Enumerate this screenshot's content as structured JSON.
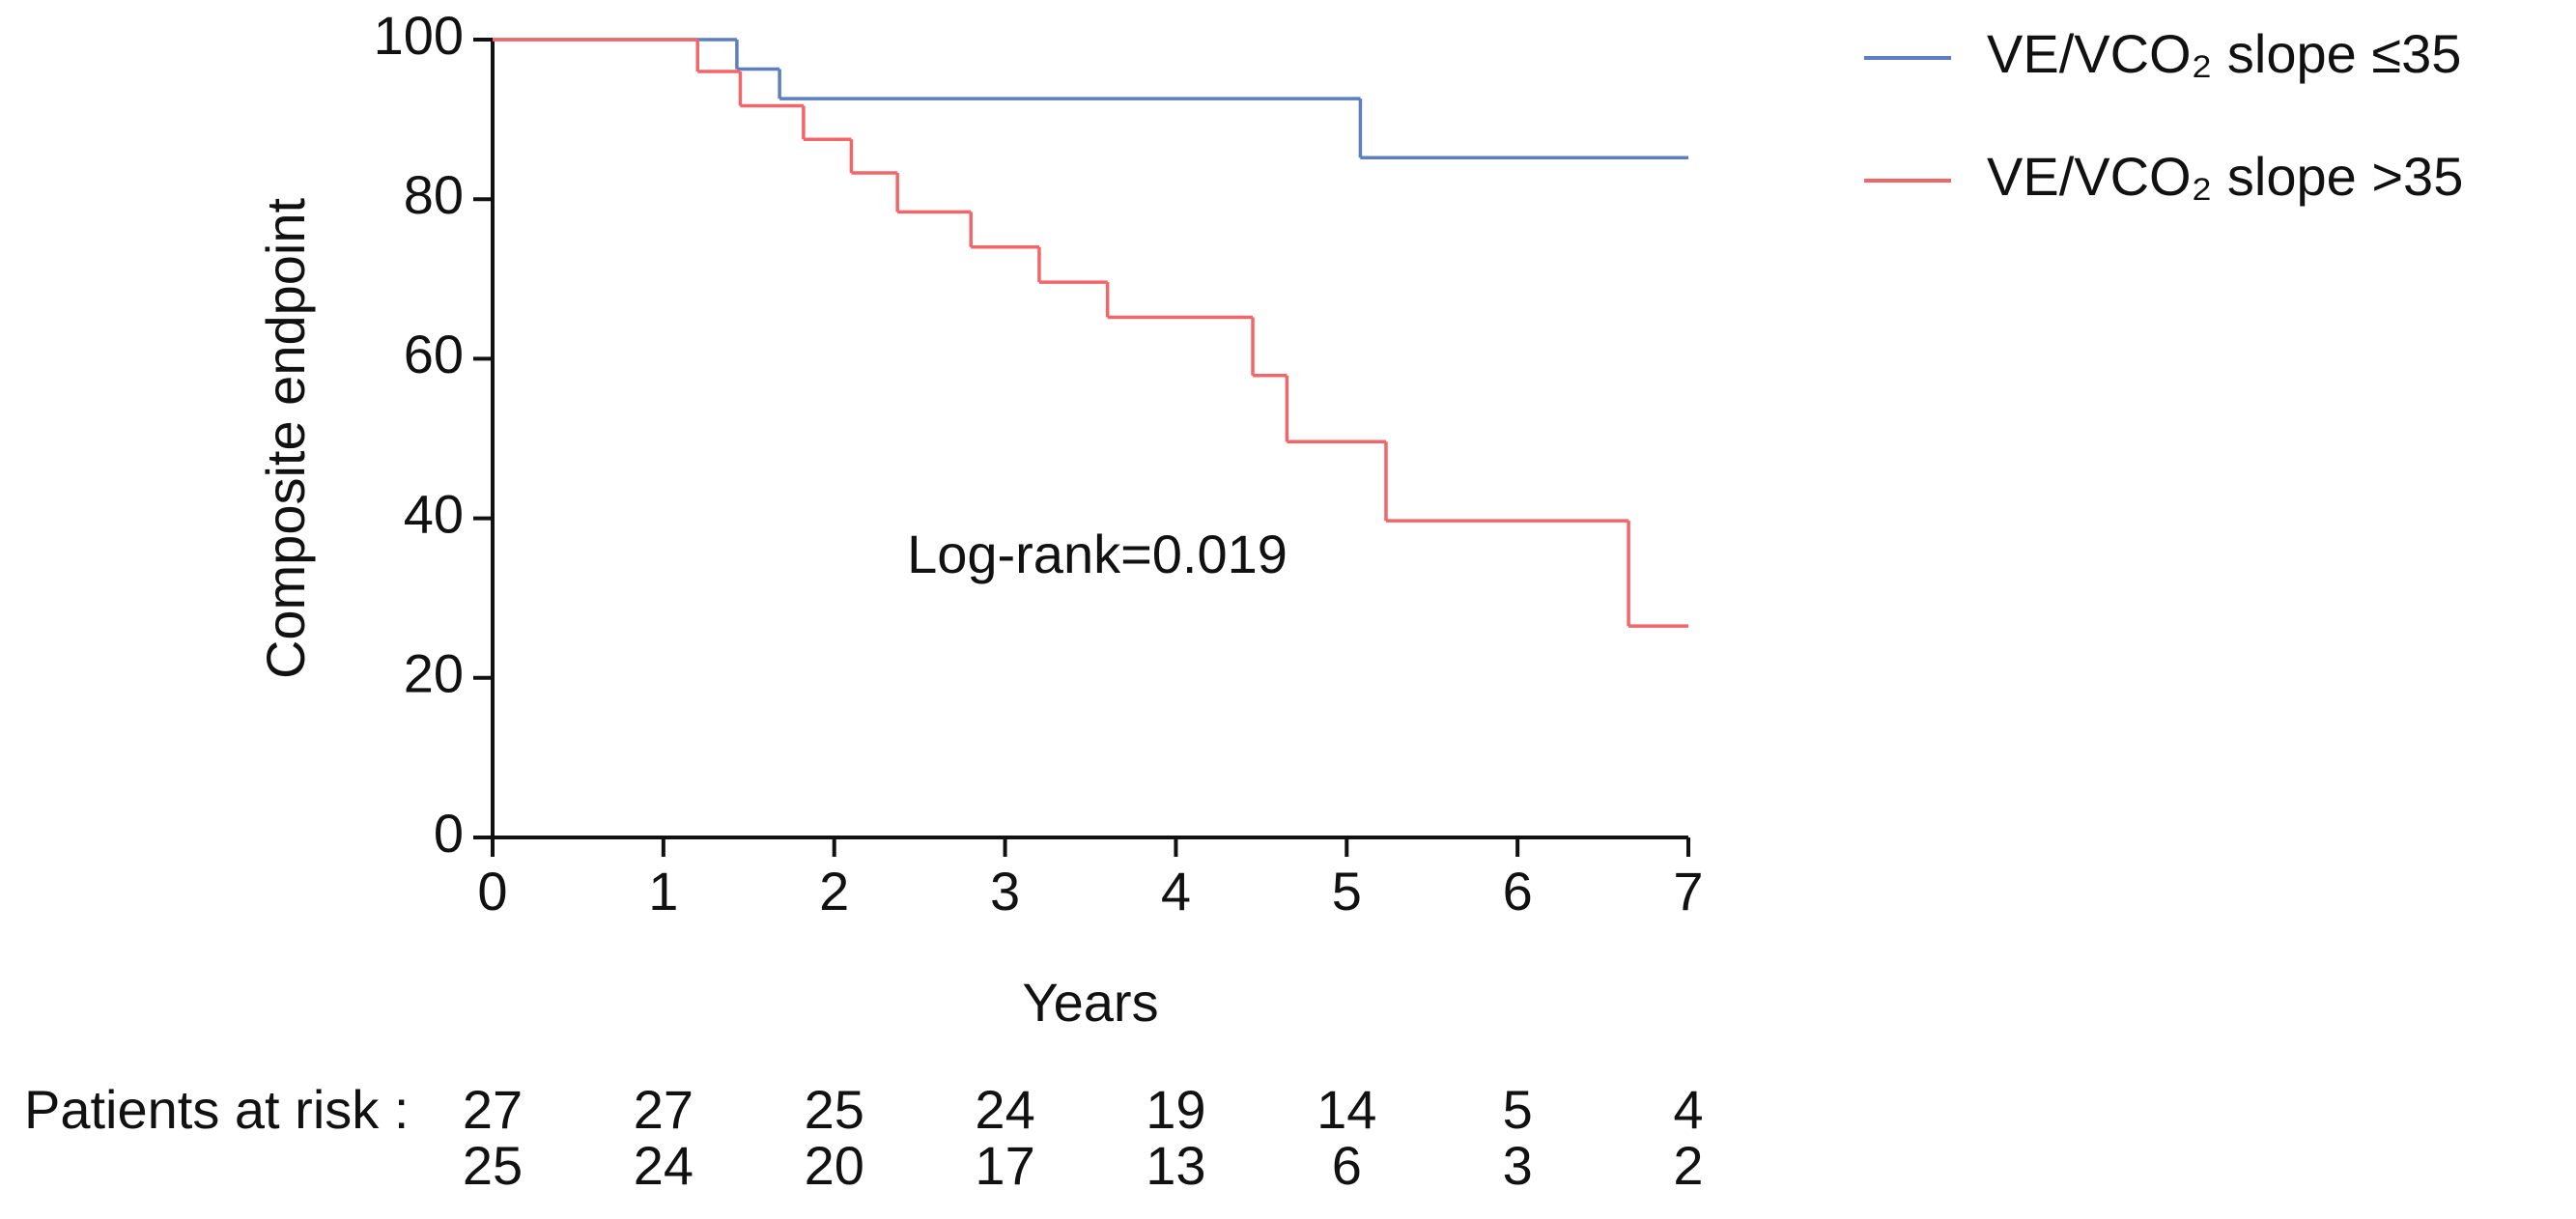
{
  "chart_data": {
    "type": "step",
    "y_label": "Composite endpoint",
    "x_label": "Years",
    "annotation": "Log-rank=0.019",
    "xlim": [
      0,
      7
    ],
    "xticks": [
      0,
      1,
      2,
      3,
      4,
      5,
      6,
      7
    ],
    "ylim": [
      0,
      100
    ],
    "yticks": [
      0,
      20,
      40,
      60,
      80,
      100
    ],
    "grid": false,
    "legend": "right",
    "series": [
      {
        "name": "VE/VCO₂ slope ≤35",
        "color": "#5b7fc0",
        "x": [
          0,
          1.43,
          1.68,
          5.08,
          7
        ],
        "values": [
          100,
          96.3,
          92.6,
          85.2,
          85.2
        ]
      },
      {
        "name": "VE/VCO₂ slope >35",
        "color": "#f2666a",
        "x": [
          0,
          1.2,
          1.45,
          1.82,
          2.1,
          2.37,
          2.8,
          3.2,
          3.6,
          4.45,
          4.65,
          5.23,
          6.65,
          7
        ],
        "values": [
          100,
          96,
          91.7,
          87.5,
          83.3,
          78.4,
          74,
          69.6,
          65.2,
          57.9,
          49.6,
          39.7,
          26.5,
          26.5
        ]
      }
    ],
    "risk_table": {
      "label": "Patients at risk :",
      "rows": [
        [
          27,
          27,
          25,
          24,
          19,
          14,
          5,
          4
        ],
        [
          25,
          24,
          20,
          17,
          13,
          6,
          3,
          2
        ]
      ]
    }
  }
}
